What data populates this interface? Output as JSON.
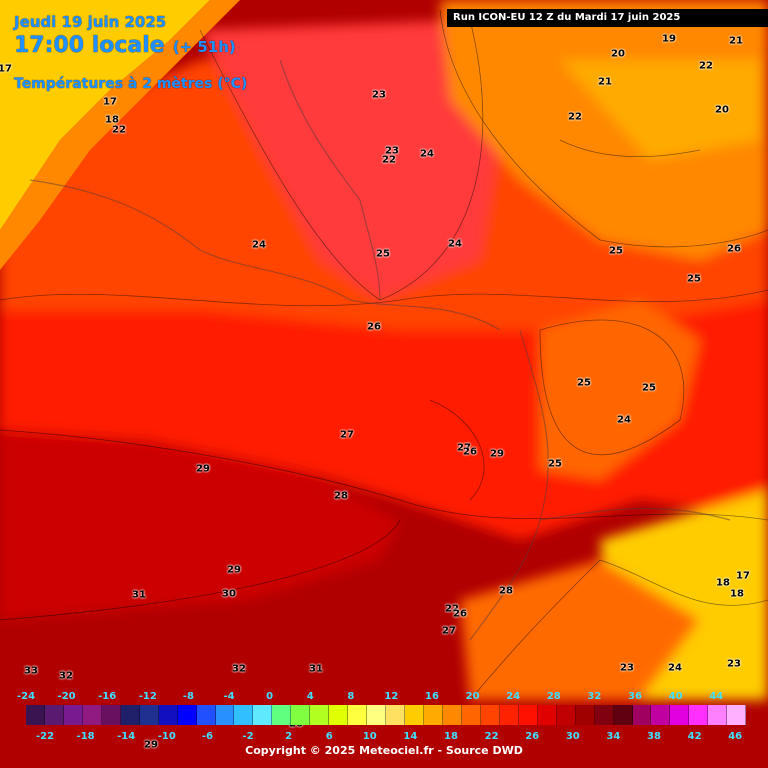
{
  "header": {
    "date": "Jeudi 19 juin 2025",
    "time": "17:00 locale",
    "lead": "(+ 51h)",
    "parameter": "Températures à 2 mètres (°C)"
  },
  "run_info": "Run ICON-EU 12 Z du Mardi 17 juin 2025",
  "copyright": "Copyright © 2025 Meteociel.fr - Source DWD",
  "colors": {
    "cold_yellow": "#ffcc00",
    "orange": "#ff8800",
    "red_orange": "#ff4400",
    "red": "#ff1a00",
    "dark_red": "#cc0000",
    "deep_red": "#a00000",
    "header_blue": "#1e90ff",
    "legend_text": "#40e0ff"
  },
  "legend": {
    "upper_ticks": [
      "-24",
      "-20",
      "-16",
      "-12",
      "-8",
      "-4",
      "0",
      "4",
      "8",
      "12",
      "16",
      "20",
      "24",
      "28",
      "32",
      "36",
      "40",
      "44"
    ],
    "lower_ticks": [
      "-22",
      "-18",
      "-14",
      "-10",
      "-6",
      "-2",
      "2",
      "6",
      "10",
      "14",
      "18",
      "22",
      "26",
      "30",
      "34",
      "38",
      "42",
      "46"
    ],
    "colors": [
      "#3a1450",
      "#5a1a70",
      "#7a1a90",
      "#901a80",
      "#6a1060",
      "#20206a",
      "#203090",
      "#1010c0",
      "#0000ff",
      "#2050ff",
      "#2890ff",
      "#30c0ff",
      "#60e8ff",
      "#60ff80",
      "#80ff40",
      "#b0ff20",
      "#e0ff00",
      "#ffff40",
      "#ffff80",
      "#ffe060",
      "#ffcc00",
      "#ffaa00",
      "#ff8800",
      "#ff6600",
      "#ff4400",
      "#ff2200",
      "#ff1100",
      "#e00000",
      "#c00000",
      "#a00000",
      "#800010",
      "#600010",
      "#a00060",
      "#c000a0",
      "#e000e0",
      "#ff30ff",
      "#ff80ff",
      "#ffb0ff"
    ]
  },
  "temperature_labels": [
    {
      "t": "17"
    },
    {
      "t": "17"
    },
    {
      "t": "18"
    },
    {
      "t": "22"
    },
    {
      "t": "23"
    },
    {
      "t": "23"
    },
    {
      "t": "22"
    },
    {
      "t": "24"
    },
    {
      "t": "24"
    },
    {
      "t": "25"
    },
    {
      "t": "24"
    },
    {
      "t": "26"
    },
    {
      "t": "20"
    },
    {
      "t": "19"
    },
    {
      "t": "21"
    },
    {
      "t": "22"
    },
    {
      "t": "21"
    },
    {
      "t": "22"
    },
    {
      "t": "20"
    },
    {
      "t": "25"
    },
    {
      "t": "26"
    },
    {
      "t": "25"
    },
    {
      "t": "25"
    },
    {
      "t": "25"
    },
    {
      "t": "24"
    },
    {
      "t": "27"
    },
    {
      "t": "27"
    },
    {
      "t": "26"
    },
    {
      "t": "29"
    },
    {
      "t": "25"
    },
    {
      "t": "29"
    },
    {
      "t": "28"
    },
    {
      "t": "29"
    },
    {
      "t": "31"
    },
    {
      "t": "30"
    },
    {
      "t": "33"
    },
    {
      "t": "32"
    },
    {
      "t": "32"
    },
    {
      "t": "31"
    },
    {
      "t": "28"
    },
    {
      "t": "22"
    },
    {
      "t": "26"
    },
    {
      "t": "27"
    },
    {
      "t": "18"
    },
    {
      "t": "17"
    },
    {
      "t": "18"
    },
    {
      "t": "23"
    },
    {
      "t": "24"
    },
    {
      "t": "23"
    },
    {
      "t": "26"
    },
    {
      "t": "29"
    }
  ]
}
